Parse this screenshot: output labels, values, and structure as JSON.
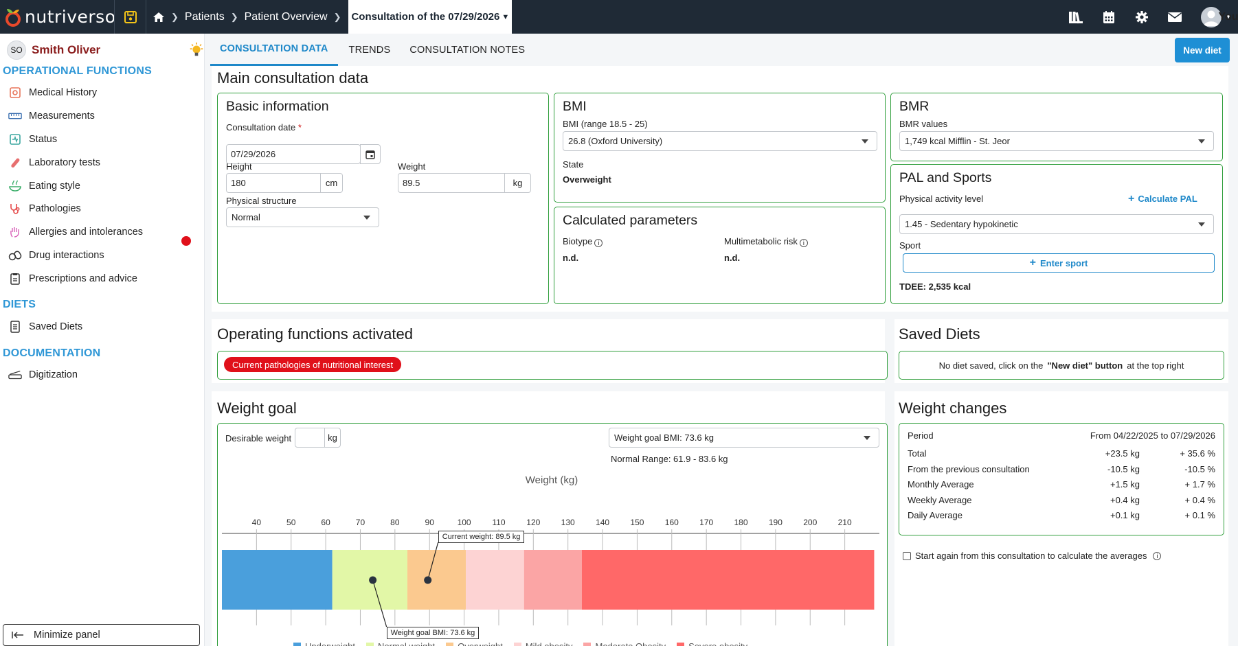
{
  "app": {
    "logo_text": "nutriverso",
    "user_label": "You"
  },
  "breadcrumb": {
    "patients": "Patients",
    "overview": "Patient Overview",
    "current": "Consultation of the 07/29/2026"
  },
  "sidebar": {
    "patient_initials": "SO",
    "patient_name": "Smith Oliver",
    "section_operational": "OPERATIONAL FUNCTIONS",
    "operational_items": [
      "Medical History",
      "Measurements",
      "Status",
      "Laboratory tests",
      "Eating style",
      "Pathologies",
      "Allergies and intolerances",
      "Drug interactions",
      "Prescriptions and advice"
    ],
    "section_diets": "DIETS",
    "diet_items": [
      "Saved Diets"
    ],
    "section_documentation": "DOCUMENTATION",
    "documentation_items": [
      "Digitization"
    ],
    "minimize_label": "Minimize panel"
  },
  "tabs": [
    "CONSULTATION DATA",
    "TRENDS",
    "CONSULTATION NOTES"
  ],
  "new_diet_label": "New diet",
  "main": {
    "title": "Main consultation data",
    "basic": {
      "title": "Basic information",
      "date_label": "Consultation date",
      "required_mark": "*",
      "date_value": "07/29/2026",
      "height_label": "Height",
      "height_value": "180",
      "height_unit": "cm",
      "weight_label": "Weight",
      "weight_value": "89.5",
      "weight_unit": "kg",
      "structure_label": "Physical structure",
      "structure_value": "Normal"
    },
    "bmi": {
      "title": "BMI",
      "range_label": "BMI (range 18.5 - 25)",
      "value": "26.8 (Oxford University)",
      "state_label": "State",
      "state_value": "Overweight"
    },
    "calc": {
      "title": "Calculated parameters",
      "biotype_label": "Biotype",
      "biotype_value": "n.d.",
      "multi_label": "Multimetabolic risk",
      "multi_value": "n.d."
    },
    "bmr": {
      "title": "BMR",
      "values_label": "BMR values",
      "value": "1,749 kcal Mifflin - St. Jeor"
    },
    "pal": {
      "title": "PAL and Sports",
      "level_label": "Physical activity level",
      "calc_link": "Calculate PAL",
      "level_value": "1.45 - Sedentary hypokinetic",
      "sport_label": "Sport",
      "enter_sport": "Enter sport",
      "tdee": "TDEE: 2,535 kcal"
    }
  },
  "operating": {
    "title": "Operating functions activated",
    "badge": "Current pathologies of nutritional interest"
  },
  "saved_diets": {
    "title": "Saved Diets",
    "msg_pre": "No diet saved, click on the",
    "msg_btn": "\"New diet\" button",
    "msg_post": "at the top right"
  },
  "weight_goal": {
    "title": "Weight goal",
    "desirable_label": "Desirable weight",
    "desirable_unit": "kg",
    "goal_select": "Weight goal BMI: 73.6 kg",
    "normal_range": "Normal Range: 61.9 - 83.6 kg",
    "current_tip": "Current weight: 89.5 kg",
    "goal_tip": "Weight goal BMI: 73.6 kg"
  },
  "weight_changes": {
    "title": "Weight changes",
    "period_label": "Period",
    "period_value": "From 04/22/2025 to 07/29/2026",
    "rows": [
      {
        "label": "Total",
        "kg": "+23.5 kg",
        "pct": "+ 35.6 %"
      },
      {
        "label": "From the previous consultation",
        "kg": "-10.5 kg",
        "pct": "-10.5 %"
      },
      {
        "label": "Monthly Average",
        "kg": "+1.5 kg",
        "pct": "+ 1.7 %"
      },
      {
        "label": "Weekly Average",
        "kg": "+0.4 kg",
        "pct": "+ 0.4 %"
      },
      {
        "label": "Daily Average",
        "kg": "+0.1 kg",
        "pct": "+ 0.1 %"
      }
    ],
    "checkbox_label": "Start again from this consultation to calculate the averages"
  },
  "colors": {
    "accent": "#1e88c9",
    "card_border": "#2f9e3b",
    "alert": "#e0101a"
  },
  "chart_data": {
    "type": "bar",
    "title": "Weight (kg)",
    "xlim": [
      30,
      220
    ],
    "ticks": [
      40,
      50,
      60,
      70,
      80,
      90,
      100,
      110,
      120,
      130,
      140,
      150,
      160,
      170,
      180,
      190,
      200,
      210
    ],
    "bands": [
      {
        "name": "Underweight",
        "from": 30,
        "to": 61.9,
        "color": "#4a9fdc"
      },
      {
        "name": "Normal weight",
        "from": 61.9,
        "to": 83.6,
        "color": "#e2f7a7"
      },
      {
        "name": "Overweight",
        "from": 83.6,
        "to": 100.5,
        "color": "#fbc98f"
      },
      {
        "name": "Mild obesity",
        "from": 100.5,
        "to": 117.3,
        "color": "#fdd3d3"
      },
      {
        "name": "Moderate Obesity",
        "from": 117.3,
        "to": 134,
        "color": "#fba5a5"
      },
      {
        "name": "Severe obesity",
        "from": 134,
        "to": 218.5,
        "color": "#ff6868"
      }
    ],
    "markers": [
      {
        "name": "Current weight",
        "value": 89.5
      },
      {
        "name": "Weight goal BMI",
        "value": 73.6
      }
    ]
  }
}
